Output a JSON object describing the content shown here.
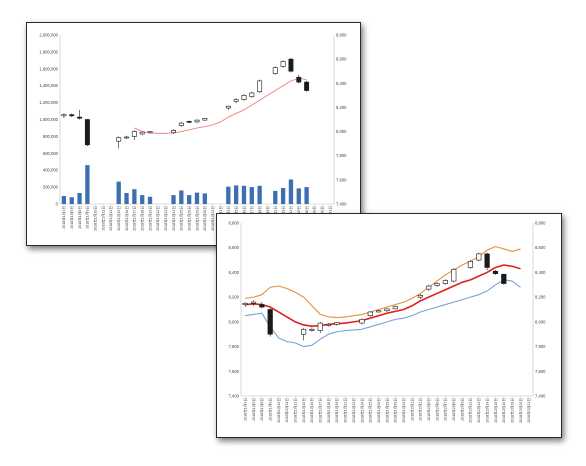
{
  "colors": {
    "bg": "#ffffff",
    "candle_up_fill": "#ffffff",
    "candle_down_fill": "#1a1a1a",
    "candle_stroke": "#1a1a1a",
    "volume_bar": "#3c6fb0",
    "ma_line_chart1": "#f08080",
    "ma_line_chart2": "#e0201c",
    "upper_band": "#e8913a",
    "lower_band": "#7aa0d4",
    "grid": "#d9d9d9"
  },
  "chart_data": [
    {
      "type": "candlestick",
      "title": "",
      "left_axis": {
        "label": "",
        "ylim": [
          0,
          2000000
        ],
        "ticks": [
          "2,000,000",
          "1,800,000",
          "1,600,000",
          "1,400,000",
          "1,200,000",
          "1,000,000",
          "800,000",
          "600,000",
          "400,000",
          "200,000",
          "0"
        ]
      },
      "right_axis": {
        "label": "",
        "ylim": [
          7400,
          8800
        ],
        "ticks": [
          "8,800",
          "8,600",
          "8,400",
          "8,200",
          "8,000",
          "7,800",
          "7,600",
          "7,400"
        ]
      },
      "x_labels": [
        "2018年1月4日",
        "2018年1月5日",
        "2018年1月8日",
        "2018年1月9日",
        "2018年1月10日",
        "2018年1月11日",
        "2018年1月12日",
        "2018年1月15日",
        "2018年1月16日",
        "2018年1月17日",
        "2018年1月18日",
        "2018年1月19日",
        "2018年1月22日",
        "2018年1月23日",
        "2018年1月24日",
        "2018年1月25日",
        "2018年1月26日",
        "2018年1月29日",
        "2018年1月30日",
        "2018年1月31日",
        "2018年2月1日",
        "2018年2月2日",
        "2018年2月5日",
        "2018年2月6日",
        "2018年2月7日",
        "2018年2月8日",
        "2018年2月9日",
        "2018年2月12日",
        "2018年2月13日",
        "2018年2月14日",
        "2018年2月15日",
        "2018年2月16日",
        "2018年2月19日",
        "2018年2月20日",
        "2018年2月21日"
      ],
      "candles": [
        {
          "i": 0,
          "open": 8130,
          "high": 8150,
          "low": 8110,
          "close": 8140
        },
        {
          "i": 1,
          "open": 8140,
          "high": 8150,
          "low": 8120,
          "close": 8130
        },
        {
          "i": 2,
          "open": 8120,
          "high": 8180,
          "low": 8100,
          "close": 8110
        },
        {
          "i": 3,
          "open": 8100,
          "high": 8105,
          "low": 7880,
          "close": 7890
        },
        {
          "i": 7,
          "open": 7920,
          "high": 7960,
          "low": 7860,
          "close": 7950
        },
        {
          "i": 8,
          "open": 7950,
          "high": 7965,
          "low": 7940,
          "close": 7955
        },
        {
          "i": 9,
          "open": 7960,
          "high": 8010,
          "low": 7930,
          "close": 8000
        },
        {
          "i": 10,
          "open": 7980,
          "high": 8000,
          "low": 7970,
          "close": 7995
        },
        {
          "i": 11,
          "open": 7990,
          "high": 8005,
          "low": 7980,
          "close": 8000
        },
        {
          "i": 14,
          "open": 7990,
          "high": 8020,
          "low": 7980,
          "close": 8010
        },
        {
          "i": 15,
          "open": 8050,
          "high": 8080,
          "low": 8040,
          "close": 8070
        },
        {
          "i": 16,
          "open": 8085,
          "high": 8090,
          "low": 8070,
          "close": 8080
        },
        {
          "i": 17,
          "open": 8080,
          "high": 8100,
          "low": 8070,
          "close": 8095
        },
        {
          "i": 18,
          "open": 8095,
          "high": 8115,
          "low": 8090,
          "close": 8110
        },
        {
          "i": 21,
          "open": 8195,
          "high": 8215,
          "low": 8180,
          "close": 8210
        },
        {
          "i": 22,
          "open": 8250,
          "high": 8275,
          "low": 8235,
          "close": 8265
        },
        {
          "i": 23,
          "open": 8265,
          "high": 8310,
          "low": 8255,
          "close": 8300
        },
        {
          "i": 24,
          "open": 8290,
          "high": 8330,
          "low": 8280,
          "close": 8320
        },
        {
          "i": 25,
          "open": 8330,
          "high": 8430,
          "low": 8320,
          "close": 8420
        },
        {
          "i": 27,
          "open": 8480,
          "high": 8540,
          "low": 8470,
          "close": 8530
        },
        {
          "i": 28,
          "open": 8540,
          "high": 8590,
          "low": 8530,
          "close": 8580
        },
        {
          "i": 29,
          "open": 8600,
          "high": 8610,
          "low": 8490,
          "close": 8500
        },
        {
          "i": 30,
          "open": 8450,
          "high": 8470,
          "low": 8400,
          "close": 8410
        },
        {
          "i": 31,
          "open": 8410,
          "high": 8420,
          "low": 8330,
          "close": 8340
        }
      ],
      "moving_average": [
        {
          "i": 9,
          "v": 8030
        },
        {
          "i": 10,
          "v": 8000
        },
        {
          "i": 11,
          "v": 7990
        },
        {
          "i": 12,
          "v": 7985
        },
        {
          "i": 13,
          "v": 7985
        },
        {
          "i": 14,
          "v": 7990
        },
        {
          "i": 15,
          "v": 8000
        },
        {
          "i": 16,
          "v": 8015
        },
        {
          "i": 17,
          "v": 8030
        },
        {
          "i": 18,
          "v": 8040
        },
        {
          "i": 19,
          "v": 8055
        },
        {
          "i": 20,
          "v": 8080
        },
        {
          "i": 21,
          "v": 8120
        },
        {
          "i": 22,
          "v": 8150
        },
        {
          "i": 23,
          "v": 8180
        },
        {
          "i": 24,
          "v": 8220
        },
        {
          "i": 25,
          "v": 8260
        },
        {
          "i": 26,
          "v": 8300
        },
        {
          "i": 27,
          "v": 8340
        },
        {
          "i": 28,
          "v": 8380
        },
        {
          "i": 29,
          "v": 8420
        },
        {
          "i": 30,
          "v": 8440
        },
        {
          "i": 31,
          "v": 8430
        }
      ],
      "volume": [
        {
          "i": 0,
          "v": 95000
        },
        {
          "i": 1,
          "v": 80000
        },
        {
          "i": 2,
          "v": 130000
        },
        {
          "i": 3,
          "v": 460000
        },
        {
          "i": 7,
          "v": 265000
        },
        {
          "i": 8,
          "v": 130000
        },
        {
          "i": 9,
          "v": 175000
        },
        {
          "i": 10,
          "v": 105000
        },
        {
          "i": 11,
          "v": 85000
        },
        {
          "i": 14,
          "v": 105000
        },
        {
          "i": 15,
          "v": 160000
        },
        {
          "i": 16,
          "v": 105000
        },
        {
          "i": 17,
          "v": 135000
        },
        {
          "i": 18,
          "v": 125000
        },
        {
          "i": 21,
          "v": 205000
        },
        {
          "i": 22,
          "v": 220000
        },
        {
          "i": 23,
          "v": 215000
        },
        {
          "i": 24,
          "v": 200000
        },
        {
          "i": 25,
          "v": 215000
        },
        {
          "i": 27,
          "v": 155000
        },
        {
          "i": 28,
          "v": 190000
        },
        {
          "i": 29,
          "v": 290000
        },
        {
          "i": 30,
          "v": 185000
        },
        {
          "i": 31,
          "v": 200000
        }
      ]
    },
    {
      "type": "candlestick",
      "title": "",
      "left_axis": {
        "label": "",
        "ylim": [
          7400,
          8800
        ],
        "ticks": [
          "8,800",
          "8,600",
          "8,400",
          "8,200",
          "8,000",
          "7,800",
          "7,600",
          "7,400"
        ]
      },
      "right_axis": {
        "label": "",
        "ylim": [
          7400,
          8800
        ],
        "ticks": [
          "8,800",
          "8,600",
          "8,400",
          "8,200",
          "8,000",
          "7,800",
          "7,600",
          "7,400"
        ]
      },
      "x_labels": [
        "2018年1月4日",
        "2018年1月5日",
        "2018年1月8日",
        "2018年1月9日",
        "2018年1月10日",
        "2018年1月11日",
        "2018年1月12日",
        "2018年1月15日",
        "2018年1月16日",
        "2018年1月17日",
        "2018年1月18日",
        "2018年1月19日",
        "2018年1月22日",
        "2018年1月23日",
        "2018年1月24日",
        "2018年1月25日",
        "2018年1月26日",
        "2018年1月29日",
        "2018年1月30日",
        "2018年1月31日",
        "2018年2月1日",
        "2018年2月2日",
        "2018年2月5日",
        "2018年2月6日",
        "2018年2月7日",
        "2018年2月8日",
        "2018年2月9日",
        "2018年2月12日",
        "2018年2月13日",
        "2018年2月14日",
        "2018年2月15日",
        "2018年2月16日",
        "2018年2月19日",
        "2018年2月20日",
        "2018年2月21日"
      ],
      "candles": [
        {
          "i": 0,
          "open": 8140,
          "high": 8160,
          "low": 8120,
          "close": 8150
        },
        {
          "i": 1,
          "open": 8150,
          "high": 8175,
          "low": 8130,
          "close": 8160
        },
        {
          "i": 2,
          "open": 8140,
          "high": 8160,
          "low": 8110,
          "close": 8120
        },
        {
          "i": 3,
          "open": 8100,
          "high": 8110,
          "low": 7880,
          "close": 7900
        },
        {
          "i": 7,
          "open": 7900,
          "high": 7950,
          "low": 7850,
          "close": 7940
        },
        {
          "i": 8,
          "open": 7930,
          "high": 7955,
          "low": 7920,
          "close": 7940
        },
        {
          "i": 9,
          "open": 7930,
          "high": 8000,
          "low": 7910,
          "close": 7990
        },
        {
          "i": 10,
          "open": 7970,
          "high": 7990,
          "low": 7960,
          "close": 7980
        },
        {
          "i": 11,
          "open": 7980,
          "high": 8000,
          "low": 7970,
          "close": 7995
        },
        {
          "i": 14,
          "open": 7990,
          "high": 8030,
          "low": 7980,
          "close": 8020
        },
        {
          "i": 15,
          "open": 8050,
          "high": 8085,
          "low": 8040,
          "close": 8080
        },
        {
          "i": 16,
          "open": 8080,
          "high": 8095,
          "low": 8075,
          "close": 8090
        },
        {
          "i": 17,
          "open": 8090,
          "high": 8110,
          "low": 8080,
          "close": 8105
        },
        {
          "i": 18,
          "open": 8105,
          "high": 8130,
          "low": 8100,
          "close": 8125
        },
        {
          "i": 21,
          "open": 8200,
          "high": 8225,
          "low": 8185,
          "close": 8215
        },
        {
          "i": 22,
          "open": 8265,
          "high": 8300,
          "low": 8250,
          "close": 8290
        },
        {
          "i": 23,
          "open": 8295,
          "high": 8320,
          "low": 8285,
          "close": 8310
        },
        {
          "i": 24,
          "open": 8310,
          "high": 8345,
          "low": 8300,
          "close": 8335
        },
        {
          "i": 25,
          "open": 8330,
          "high": 8435,
          "low": 8320,
          "close": 8425
        },
        {
          "i": 27,
          "open": 8440,
          "high": 8500,
          "low": 8430,
          "close": 8490
        },
        {
          "i": 28,
          "open": 8500,
          "high": 8560,
          "low": 8490,
          "close": 8550
        },
        {
          "i": 29,
          "open": 8550,
          "high": 8560,
          "low": 8420,
          "close": 8440
        },
        {
          "i": 30,
          "open": 8410,
          "high": 8420,
          "low": 8380,
          "close": 8390
        },
        {
          "i": 31,
          "open": 8385,
          "high": 8390,
          "low": 8300,
          "close": 8310
        }
      ],
      "moving_average": [
        {
          "i": 0,
          "v": 8140
        },
        {
          "i": 1,
          "v": 8145
        },
        {
          "i": 2,
          "v": 8140
        },
        {
          "i": 3,
          "v": 8120
        },
        {
          "i": 4,
          "v": 8080
        },
        {
          "i": 5,
          "v": 8040
        },
        {
          "i": 6,
          "v": 8000
        },
        {
          "i": 7,
          "v": 7975
        },
        {
          "i": 8,
          "v": 7965
        },
        {
          "i": 9,
          "v": 7970
        },
        {
          "i": 10,
          "v": 7980
        },
        {
          "i": 11,
          "v": 7985
        },
        {
          "i": 12,
          "v": 7990
        },
        {
          "i": 13,
          "v": 8000
        },
        {
          "i": 14,
          "v": 8010
        },
        {
          "i": 15,
          "v": 8030
        },
        {
          "i": 16,
          "v": 8050
        },
        {
          "i": 17,
          "v": 8070
        },
        {
          "i": 18,
          "v": 8085
        },
        {
          "i": 19,
          "v": 8100
        },
        {
          "i": 20,
          "v": 8130
        },
        {
          "i": 21,
          "v": 8170
        },
        {
          "i": 22,
          "v": 8200
        },
        {
          "i": 23,
          "v": 8230
        },
        {
          "i": 24,
          "v": 8260
        },
        {
          "i": 25,
          "v": 8290
        },
        {
          "i": 26,
          "v": 8320
        },
        {
          "i": 27,
          "v": 8340
        },
        {
          "i": 28,
          "v": 8370
        },
        {
          "i": 29,
          "v": 8400
        },
        {
          "i": 30,
          "v": 8440
        },
        {
          "i": 31,
          "v": 8460
        },
        {
          "i": 32,
          "v": 8450
        },
        {
          "i": 33,
          "v": 8430
        }
      ],
      "upper_band": [
        {
          "i": 0,
          "v": 8190
        },
        {
          "i": 1,
          "v": 8200
        },
        {
          "i": 2,
          "v": 8220
        },
        {
          "i": 3,
          "v": 8280
        },
        {
          "i": 4,
          "v": 8290
        },
        {
          "i": 5,
          "v": 8270
        },
        {
          "i": 6,
          "v": 8240
        },
        {
          "i": 7,
          "v": 8200
        },
        {
          "i": 8,
          "v": 8130
        },
        {
          "i": 9,
          "v": 8060
        },
        {
          "i": 10,
          "v": 8040
        },
        {
          "i": 11,
          "v": 8035
        },
        {
          "i": 12,
          "v": 8040
        },
        {
          "i": 13,
          "v": 8050
        },
        {
          "i": 14,
          "v": 8060
        },
        {
          "i": 15,
          "v": 8080
        },
        {
          "i": 16,
          "v": 8100
        },
        {
          "i": 17,
          "v": 8120
        },
        {
          "i": 18,
          "v": 8140
        },
        {
          "i": 19,
          "v": 8160
        },
        {
          "i": 20,
          "v": 8190
        },
        {
          "i": 21,
          "v": 8230
        },
        {
          "i": 22,
          "v": 8280
        },
        {
          "i": 23,
          "v": 8330
        },
        {
          "i": 24,
          "v": 8380
        },
        {
          "i": 25,
          "v": 8420
        },
        {
          "i": 26,
          "v": 8460
        },
        {
          "i": 27,
          "v": 8490
        },
        {
          "i": 28,
          "v": 8530
        },
        {
          "i": 29,
          "v": 8580
        },
        {
          "i": 30,
          "v": 8610
        },
        {
          "i": 31,
          "v": 8590
        },
        {
          "i": 32,
          "v": 8570
        },
        {
          "i": 33,
          "v": 8590
        }
      ],
      "lower_band": [
        {
          "i": 0,
          "v": 8050
        },
        {
          "i": 1,
          "v": 8060
        },
        {
          "i": 2,
          "v": 8070
        },
        {
          "i": 3,
          "v": 7960
        },
        {
          "i": 4,
          "v": 7870
        },
        {
          "i": 5,
          "v": 7840
        },
        {
          "i": 6,
          "v": 7830
        },
        {
          "i": 7,
          "v": 7800
        },
        {
          "i": 8,
          "v": 7810
        },
        {
          "i": 9,
          "v": 7860
        },
        {
          "i": 10,
          "v": 7900
        },
        {
          "i": 11,
          "v": 7920
        },
        {
          "i": 12,
          "v": 7930
        },
        {
          "i": 13,
          "v": 7935
        },
        {
          "i": 14,
          "v": 7940
        },
        {
          "i": 15,
          "v": 7960
        },
        {
          "i": 16,
          "v": 7980
        },
        {
          "i": 17,
          "v": 8000
        },
        {
          "i": 18,
          "v": 8020
        },
        {
          "i": 19,
          "v": 8030
        },
        {
          "i": 20,
          "v": 8050
        },
        {
          "i": 21,
          "v": 8080
        },
        {
          "i": 22,
          "v": 8100
        },
        {
          "i": 23,
          "v": 8120
        },
        {
          "i": 24,
          "v": 8140
        },
        {
          "i": 25,
          "v": 8160
        },
        {
          "i": 26,
          "v": 8180
        },
        {
          "i": 27,
          "v": 8200
        },
        {
          "i": 28,
          "v": 8220
        },
        {
          "i": 29,
          "v": 8250
        },
        {
          "i": 30,
          "v": 8300
        },
        {
          "i": 31,
          "v": 8340
        },
        {
          "i": 32,
          "v": 8330
        },
        {
          "i": 33,
          "v": 8280
        }
      ]
    }
  ]
}
